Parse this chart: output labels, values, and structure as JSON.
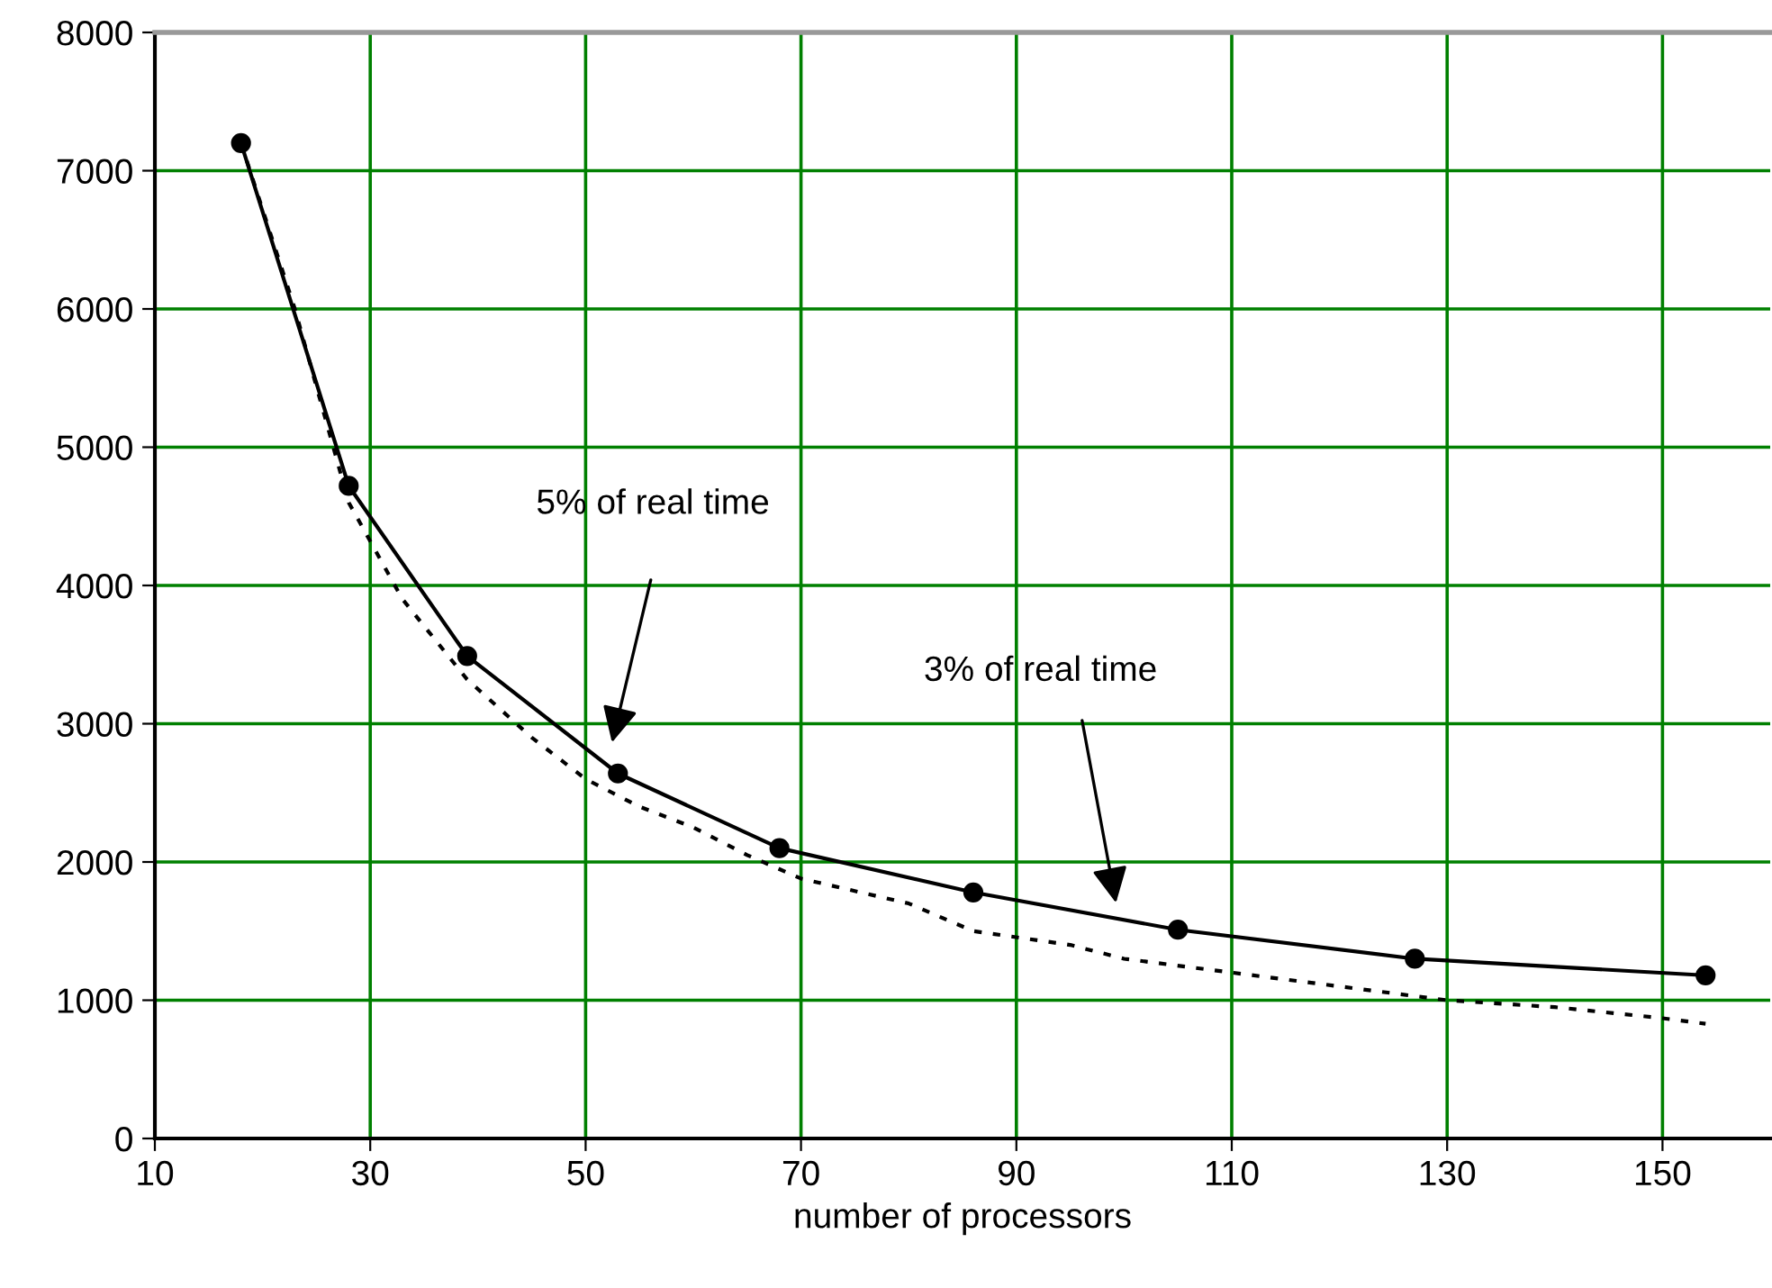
{
  "chart_data": {
    "type": "line",
    "xlabel": "number of processors",
    "xlim": [
      10,
      160
    ],
    "xticks": [
      10,
      30,
      50,
      70,
      90,
      110,
      130,
      150
    ],
    "ylim": [
      0,
      8000
    ],
    "yticks": [
      0,
      1000,
      2000,
      3000,
      4000,
      5000,
      6000,
      7000,
      8000
    ],
    "grid": true,
    "series": [
      {
        "color": "#000000",
        "marker": "circle",
        "line_style": "solid",
        "x": [
          18,
          28,
          39,
          53,
          68,
          86,
          105,
          127,
          154
        ],
        "values": [
          7200,
          4720,
          3490,
          2640,
          2100,
          1780,
          1510,
          1300,
          1180
        ]
      },
      {
        "color": "#000000",
        "marker": "none",
        "line_style": "dotted",
        "x": [
          18,
          23,
          28,
          33,
          39,
          45,
          50,
          55,
          60,
          65,
          70,
          80,
          86,
          95,
          100,
          110,
          120,
          130,
          140,
          150,
          154
        ],
        "values": [
          7200,
          6000,
          4600,
          3900,
          3320,
          2900,
          2600,
          2400,
          2250,
          2050,
          1880,
          1700,
          1500,
          1400,
          1300,
          1200,
          1100,
          1000,
          950,
          870,
          830
        ]
      }
    ],
    "annotations": [
      "5% of real time",
      "3% of real time"
    ]
  }
}
